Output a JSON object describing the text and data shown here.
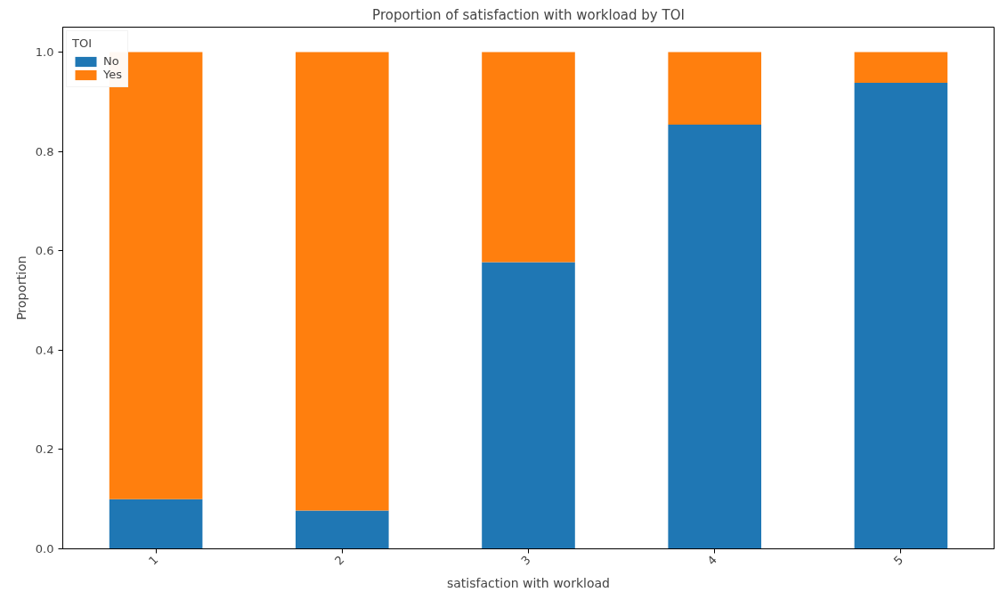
{
  "chart_data": {
    "type": "bar",
    "title": "Proportion of satisfaction with workload by TOI",
    "xlabel": "satisfaction with workload",
    "ylabel": "Proportion",
    "legend_title": "TOI",
    "categories": [
      "1",
      "2",
      "3",
      "4",
      "5"
    ],
    "stacked": true,
    "series": [
      {
        "name": "No",
        "color": "#1f77b4",
        "values": [
          0.1,
          0.077,
          0.577,
          0.854,
          0.938
        ]
      },
      {
        "name": "Yes",
        "color": "#ff7f0e",
        "values": [
          0.9,
          0.923,
          0.423,
          0.146,
          0.062
        ]
      }
    ],
    "ylim": [
      0,
      1.05
    ],
    "yticks": [
      {
        "value": 0,
        "label": "0.0"
      },
      0.2,
      0.4,
      0.6,
      0.8,
      {
        "value": 1,
        "label": "1.0"
      }
    ],
    "grid": false,
    "legend": "top left"
  }
}
